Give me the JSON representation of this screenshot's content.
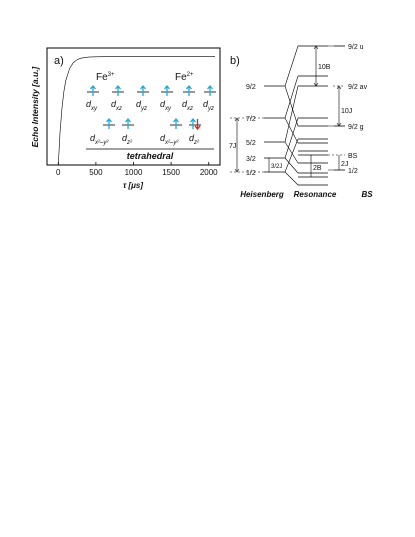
{
  "panel_a": {
    "label": "a)",
    "ylabel": "Echo Intensity [a.u.]",
    "xlabel_base": "τ [",
    "xlabel_unit": "μs",
    "xlabel_close": "]",
    "left_ion": {
      "symbol": "Fe",
      "charge": "3+"
    },
    "right_ion": {
      "symbol": "Fe",
      "charge": "2+"
    },
    "orbitals_top": [
      {
        "d": "d",
        "sub": "xy"
      },
      {
        "d": "d",
        "sub": "xz"
      },
      {
        "d": "d",
        "sub": "yz"
      }
    ],
    "orbitals_bottom": [
      {
        "d": "d",
        "sub": "x²–y²"
      },
      {
        "d": "d",
        "sub": "z²"
      }
    ],
    "geometry": "tetrahedral",
    "arrow_color": "#1fa9d8",
    "down_spin_color": "#e02020",
    "curve_color": "#e11a1a"
  },
  "chart_data": {
    "type": "line",
    "x_ticks": [
      "0",
      "500",
      "1000",
      "1500",
      "2000"
    ],
    "xlim": [
      -150,
      2150
    ],
    "ylim": [
      0,
      1.08
    ],
    "grid": false,
    "legend": "none",
    "series": [
      {
        "color": "#e11a1a",
        "x": [
          0,
          25,
          50,
          75,
          100,
          150,
          200,
          250,
          300,
          400,
          500,
          600,
          800,
          1000,
          1200,
          1500,
          1800,
          2000,
          2100
        ],
        "y": [
          0.0,
          0.32,
          0.53,
          0.68,
          0.78,
          0.89,
          0.945,
          0.972,
          0.986,
          0.996,
          0.999,
          1.0,
          1.0,
          1.0,
          1.0,
          1.0,
          1.0,
          1.0,
          1.0
        ]
      }
    ]
  },
  "panel_b": {
    "label": "b)",
    "columns": [
      "Heisenberg",
      "Resonance",
      "BS"
    ],
    "heisenberg_levels": [
      "9/2",
      "7/2",
      "5/2",
      "3/2",
      "1/2"
    ],
    "right_levels": [
      "9/2 u",
      "9/2 av",
      "9/2 g",
      "BS",
      "1/2"
    ],
    "span_labels": {
      "h_7j": "7J",
      "h_3_2j": "3/2J",
      "r_10b": "10B",
      "r_10j": "10J",
      "r_2b": "2B",
      "r_2j": "2J"
    }
  }
}
